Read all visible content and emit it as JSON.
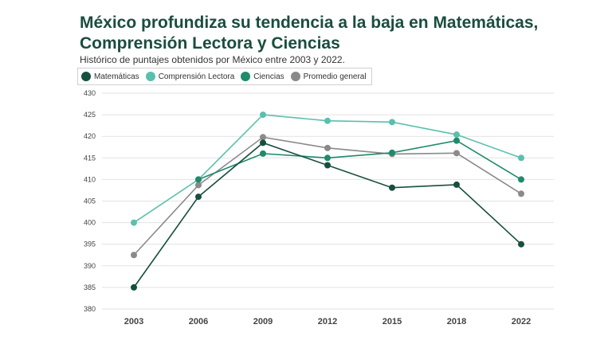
{
  "title": "México profundiza su tendencia a la baja en Matemáticas, Comprensión Lectora y Ciencias",
  "subtitle": "Histórico de puntajes obtenidos por México entre 2003 y 2022.",
  "chart_data": {
    "type": "line",
    "title": "México profundiza su tendencia a la baja en Matemáticas, Comprensión Lectora y Ciencias",
    "subtitle": "Histórico de puntajes obtenidos por México entre 2003 y 2022.",
    "xlabel": "",
    "ylabel": "",
    "x": [
      "2003",
      "2006",
      "2009",
      "2012",
      "2015",
      "2018",
      "2022"
    ],
    "ylim": [
      380,
      430
    ],
    "yticks": [
      380,
      385,
      390,
      395,
      400,
      405,
      410,
      415,
      420,
      425,
      430
    ],
    "grid": true,
    "legend_position": "top-left",
    "series": [
      {
        "name": "Matemáticas",
        "color": "#174f3f",
        "values": [
          385,
          406,
          418.5,
          413.3,
          408.1,
          408.8,
          395
        ]
      },
      {
        "name": "Comprensión Lectora",
        "color": "#5bbfad",
        "values": [
          400,
          410,
          425,
          423.6,
          423.3,
          420.4,
          415
        ]
      },
      {
        "name": "Ciencias",
        "color": "#1f8a6c",
        "values": [
          null,
          410,
          416,
          415,
          416.2,
          419,
          410
        ]
      },
      {
        "name": "Promedio general",
        "color": "#8a8a8a",
        "values": [
          392.5,
          408.7,
          419.8,
          417.3,
          415.9,
          416.1,
          406.7
        ]
      }
    ]
  }
}
